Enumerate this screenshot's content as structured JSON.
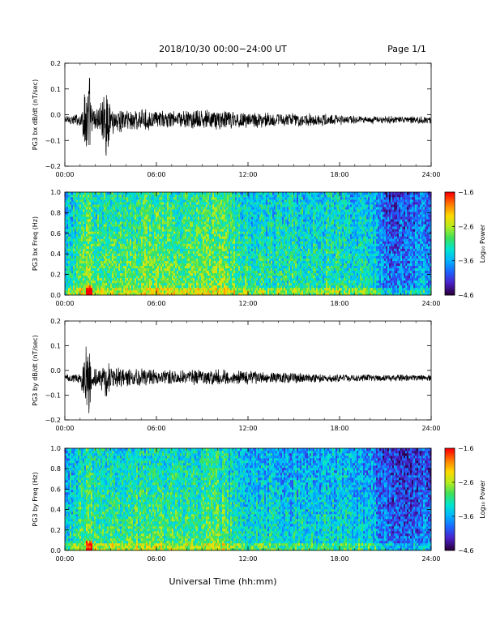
{
  "header": {
    "title": "2018/10/30  00:00−24:00 UT",
    "page": "Page 1/1"
  },
  "footer": {
    "xlabel": "Universal Time (hh:mm)"
  },
  "colors": {
    "trace": "#000000",
    "colormap": [
      "#2a0040",
      "#4b1fc8",
      "#1c64ff",
      "#00b4ff",
      "#00e6d0",
      "#3ee05a",
      "#b4ec1e",
      "#ffd800",
      "#ff7a00",
      "#ff0000"
    ]
  },
  "chart_data": [
    {
      "type": "line",
      "id": "bx-timeseries",
      "ylabel": "PG3 bx dB/dt (nT/sec)",
      "ylim": [
        -0.2,
        0.2
      ],
      "yticks": [
        "0.2",
        "0.1",
        "0.0",
        "−0.1",
        "−0.2"
      ],
      "ytick_values": [
        0.2,
        0.1,
        0.0,
        -0.1,
        -0.2
      ],
      "xticks": [
        "00:00",
        "06:00",
        "12:00",
        "18:00",
        "24:00"
      ],
      "xlim_hours": [
        0,
        24
      ],
      "baseline": -0.02,
      "envelope": {
        "hours": [
          0,
          1,
          1.6,
          1.75,
          2,
          2.5,
          2.75,
          3,
          4,
          6,
          8,
          10,
          12,
          14,
          16,
          18,
          20,
          22,
          24
        ],
        "amplitude": [
          0.02,
          0.03,
          0.22,
          0.05,
          0.06,
          0.09,
          0.16,
          0.06,
          0.05,
          0.04,
          0.04,
          0.045,
          0.035,
          0.03,
          0.028,
          0.022,
          0.018,
          0.015,
          0.016
        ]
      }
    },
    {
      "type": "heatmap",
      "id": "bx-spectrogram",
      "ylabel": "PG3 bx Freq (Hz)",
      "ylim": [
        0.0,
        1.0
      ],
      "yticks": [
        "1.0",
        "0.8",
        "0.6",
        "0.4",
        "0.2",
        "0.0"
      ],
      "ytick_values": [
        1.0,
        0.8,
        0.6,
        0.4,
        0.2,
        0.0
      ],
      "xticks": [
        "00:00",
        "06:00",
        "12:00",
        "18:00",
        "24:00"
      ],
      "xlim_hours": [
        0,
        24
      ],
      "colorbar": {
        "label": "Log₁₀ Power",
        "range": [
          -4.6,
          -1.6
        ],
        "ticks": [
          "−1.6",
          "−2.6",
          "−3.6",
          "−4.6"
        ],
        "tick_values": [
          -1.6,
          -2.6,
          -3.6,
          -4.6
        ]
      },
      "activity_profile": {
        "hours": [
          0,
          1.6,
          2,
          4,
          6,
          8,
          10,
          12,
          14,
          16,
          18,
          20,
          21,
          22,
          24
        ],
        "level": [
          -3.3,
          -2.6,
          -2.9,
          -2.9,
          -2.8,
          -2.8,
          -2.7,
          -3.1,
          -3.1,
          -3.1,
          -3.1,
          -3.2,
          -3.7,
          -3.8,
          -3.5
        ]
      }
    },
    {
      "type": "line",
      "id": "by-timeseries",
      "ylabel": "PG3 by dB/dt (nT/sec)",
      "ylim": [
        -0.2,
        0.2
      ],
      "yticks": [
        "0.2",
        "0.1",
        "0.0",
        "−0.1",
        "−0.2"
      ],
      "ytick_values": [
        0.2,
        0.1,
        0.0,
        -0.1,
        -0.2
      ],
      "xticks": [
        "00:00",
        "06:00",
        "12:00",
        "18:00",
        "24:00"
      ],
      "xlim_hours": [
        0,
        24
      ],
      "baseline": -0.03,
      "envelope": {
        "hours": [
          0,
          1,
          1.6,
          1.75,
          2,
          2.5,
          2.75,
          3,
          4,
          6,
          8,
          10,
          12,
          14,
          16,
          18,
          20,
          22,
          24
        ],
        "amplitude": [
          0.015,
          0.025,
          0.2,
          0.04,
          0.05,
          0.07,
          0.13,
          0.05,
          0.045,
          0.035,
          0.035,
          0.04,
          0.03,
          0.025,
          0.022,
          0.018,
          0.015,
          0.014,
          0.014
        ]
      }
    },
    {
      "type": "heatmap",
      "id": "by-spectrogram",
      "ylabel": "PG3 by Freq (Hz)",
      "ylim": [
        0.0,
        1.0
      ],
      "yticks": [
        "1.0",
        "0.8",
        "0.6",
        "0.4",
        "0.2",
        "0.0"
      ],
      "ytick_values": [
        1.0,
        0.8,
        0.6,
        0.4,
        0.2,
        0.0
      ],
      "xticks": [
        "00:00",
        "06:00",
        "12:00",
        "18:00",
        "24:00"
      ],
      "xlim_hours": [
        0,
        24
      ],
      "colorbar": {
        "label": "Log₁₀ Power",
        "range": [
          -4.6,
          -1.6
        ],
        "ticks": [
          "−1.6",
          "−2.6",
          "−3.6",
          "−4.6"
        ],
        "tick_values": [
          -1.6,
          -2.6,
          -3.6,
          -4.6
        ]
      },
      "activity_profile": {
        "hours": [
          0,
          1.6,
          2,
          4,
          6,
          8,
          10,
          12,
          14,
          16,
          18,
          20,
          21,
          22,
          24
        ],
        "level": [
          -3.4,
          -2.8,
          -3.0,
          -3.0,
          -3.0,
          -3.0,
          -2.9,
          -3.2,
          -3.3,
          -3.3,
          -3.3,
          -3.4,
          -3.8,
          -3.9,
          -3.7
        ]
      }
    }
  ]
}
